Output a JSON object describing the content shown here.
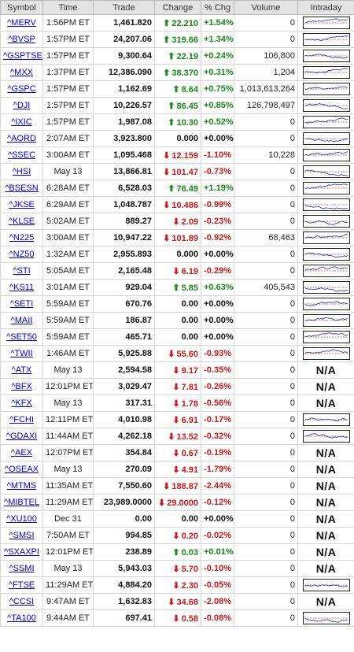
{
  "headers": {
    "symbol": "Symbol",
    "time": "Time",
    "trade": "Trade",
    "change": "Change",
    "pct": "% Chg",
    "volume": "Volume",
    "intraday": "Intraday"
  },
  "colors": {
    "up": "#1a8a1a",
    "down": "#c81a1a",
    "spark_line": "#3344bb",
    "spark_ref": "#d04040"
  },
  "rows": [
    {
      "symbol": "^MERV",
      "time": "1:56PM ET",
      "trade": "1,461.820",
      "change": "22.210",
      "pct": "+1.54%",
      "volume": "0",
      "dir": "up",
      "chart": true
    },
    {
      "symbol": "^BVSP",
      "time": "1:57PM ET",
      "trade": "24,207.06",
      "change": "319.66",
      "pct": "+1.34%",
      "volume": "0",
      "dir": "up",
      "chart": true
    },
    {
      "symbol": "^GSPTSE",
      "time": "1:57PM ET",
      "trade": "9,300.64",
      "change": "22.19",
      "pct": "+0.24%",
      "volume": "106,800",
      "dir": "up",
      "chart": true
    },
    {
      "symbol": "^MXX",
      "time": "1:37PM ET",
      "trade": "12,386.090",
      "change": "38.370",
      "pct": "+0.31%",
      "volume": "1,204",
      "dir": "up",
      "chart": true
    },
    {
      "symbol": "^GSPC",
      "time": "1:57PM ET",
      "trade": "1,162.69",
      "change": "8.64",
      "pct": "+0.75%",
      "volume": "1,013,613,264",
      "dir": "up",
      "chart": true
    },
    {
      "symbol": "^DJI",
      "time": "1:57PM ET",
      "trade": "10,226.57",
      "change": "86.45",
      "pct": "+0.85%",
      "volume": "126,798,497",
      "dir": "up",
      "chart": true
    },
    {
      "symbol": "^IXIC",
      "time": "1:57PM ET",
      "trade": "1,987.08",
      "change": "10.30",
      "pct": "+0.52%",
      "volume": "0",
      "dir": "up",
      "chart": true
    },
    {
      "symbol": "^AORD",
      "time": "2:07AM ET",
      "trade": "3,923.800",
      "change": "0.000",
      "pct": "+0.00%",
      "volume": "0",
      "dir": "flat",
      "chart": true
    },
    {
      "symbol": "^SSEC",
      "time": "3:00AM ET",
      "trade": "1,095.468",
      "change": "12.159",
      "pct": "-1.10%",
      "volume": "10,228",
      "dir": "down",
      "chart": true
    },
    {
      "symbol": "^HSI",
      "time": "May 13",
      "trade": "13,866.81",
      "change": "101.47",
      "pct": "-0.73%",
      "volume": "0",
      "dir": "down",
      "chart": true
    },
    {
      "symbol": "^BSESN",
      "time": "6:28AM ET",
      "trade": "6,528.03",
      "change": "76.49",
      "pct": "+1.19%",
      "volume": "0",
      "dir": "up",
      "chart": true
    },
    {
      "symbol": "^JKSE",
      "time": "6:29AM ET",
      "trade": "1,048.787",
      "change": "10.486",
      "pct": "-0.99%",
      "volume": "0",
      "dir": "down",
      "chart": true
    },
    {
      "symbol": "^KLSE",
      "time": "5:02AM ET",
      "trade": "889.27",
      "change": "2.09",
      "pct": "-0.23%",
      "volume": "0",
      "dir": "down",
      "chart": true
    },
    {
      "symbol": "^N225",
      "time": "3:00AM ET",
      "trade": "10,947.22",
      "change": "101.89",
      "pct": "-0.92%",
      "volume": "68,463",
      "dir": "down",
      "chart": true
    },
    {
      "symbol": "^NZ50",
      "time": "1:32AM ET",
      "trade": "2,955.893",
      "change": "0.000",
      "pct": "+0.00%",
      "volume": "0",
      "dir": "flat",
      "chart": true
    },
    {
      "symbol": "^STI",
      "time": "5:05AM ET",
      "trade": "2,165.48",
      "change": "6.19",
      "pct": "-0.29%",
      "volume": "0",
      "dir": "down",
      "chart": true
    },
    {
      "symbol": "^KS11",
      "time": "3:01AM ET",
      "trade": "929.04",
      "change": "5.85",
      "pct": "+0.63%",
      "volume": "405,543",
      "dir": "up",
      "chart": true
    },
    {
      "symbol": "^SETI",
      "time": "5:59AM ET",
      "trade": "670.76",
      "change": "0.00",
      "pct": "+0.00%",
      "volume": "0",
      "dir": "flat",
      "chart": true
    },
    {
      "symbol": "^MAII",
      "time": "5:59AM ET",
      "trade": "186.87",
      "change": "0.00",
      "pct": "+0.00%",
      "volume": "0",
      "dir": "flat",
      "chart": true
    },
    {
      "symbol": "^SET50",
      "time": "5:59AM ET",
      "trade": "465.71",
      "change": "0.00",
      "pct": "+0.00%",
      "volume": "0",
      "dir": "flat",
      "chart": true
    },
    {
      "symbol": "^TWII",
      "time": "1:46AM ET",
      "trade": "5,925.88",
      "change": "55.60",
      "pct": "-0.93%",
      "volume": "0",
      "dir": "down",
      "chart": true
    },
    {
      "symbol": "^ATX",
      "time": "May 13",
      "trade": "2,594.58",
      "change": "9.17",
      "pct": "-0.35%",
      "volume": "0",
      "dir": "down",
      "chart": false
    },
    {
      "symbol": "^BFX",
      "time": "12:01PM ET",
      "trade": "3,029.47",
      "change": "7.81",
      "pct": "-0.26%",
      "volume": "0",
      "dir": "down",
      "chart": false
    },
    {
      "symbol": "^KFX",
      "time": "May 13",
      "trade": "317.31",
      "change": "1.78",
      "pct": "-0.56%",
      "volume": "0",
      "dir": "down",
      "chart": false
    },
    {
      "symbol": "^FCHI",
      "time": "12:11PM ET",
      "trade": "4,010.98",
      "change": "6.91",
      "pct": "-0.17%",
      "volume": "0",
      "dir": "down",
      "chart": true
    },
    {
      "symbol": "^GDAXI",
      "time": "11:44AM ET",
      "trade": "4,262.18",
      "change": "13.52",
      "pct": "-0.32%",
      "volume": "0",
      "dir": "down",
      "chart": true
    },
    {
      "symbol": "^AEX",
      "time": "12:07PM ET",
      "trade": "354.84",
      "change": "0.67",
      "pct": "-0.19%",
      "volume": "0",
      "dir": "down",
      "chart": false
    },
    {
      "symbol": "^OSEAX",
      "time": "May 13",
      "trade": "270.09",
      "change": "4.91",
      "pct": "-1.79%",
      "volume": "0",
      "dir": "down",
      "chart": false
    },
    {
      "symbol": "^MTMS",
      "time": "11:35AM ET",
      "trade": "7,550.60",
      "change": "188.87",
      "pct": "-2.44%",
      "volume": "0",
      "dir": "down",
      "chart": false
    },
    {
      "symbol": "^MIBTEL",
      "time": "11:29AM ET",
      "trade": "23,989.0000",
      "change": "29.0000",
      "pct": "-0.12%",
      "volume": "0",
      "dir": "down",
      "chart": false
    },
    {
      "symbol": "^XU100",
      "time": "Dec 31",
      "trade": "0.00",
      "change": "0.00",
      "pct": "+0.00%",
      "volume": "0",
      "dir": "flat",
      "chart": false
    },
    {
      "symbol": "^SMSI",
      "time": "7:50AM ET",
      "trade": "994.85",
      "change": "0.20",
      "pct": "-0.02%",
      "volume": "0",
      "dir": "down",
      "chart": false
    },
    {
      "symbol": "^SXAXPI",
      "time": "12:01PM ET",
      "trade": "238.89",
      "change": "0.03",
      "pct": "+0.01%",
      "volume": "0",
      "dir": "up",
      "chart": false
    },
    {
      "symbol": "^SSMI",
      "time": "May 13",
      "trade": "5,943.03",
      "change": "5.70",
      "pct": "-0.10%",
      "volume": "0",
      "dir": "down",
      "chart": false
    },
    {
      "symbol": "^FTSE",
      "time": "11:29AM ET",
      "trade": "4,884.20",
      "change": "2.30",
      "pct": "-0.05%",
      "volume": "0",
      "dir": "down",
      "chart": true
    },
    {
      "symbol": "^CCSI",
      "time": "9:47AM ET",
      "trade": "1,632.83",
      "change": "34.68",
      "pct": "-2.08%",
      "volume": "0",
      "dir": "down",
      "chart": false
    },
    {
      "symbol": "^TA100",
      "time": "9:44AM ET",
      "trade": "697.41",
      "change": "0.58",
      "pct": "-0.08%",
      "volume": "0",
      "dir": "down",
      "chart": true
    }
  ],
  "na_label": "N/A"
}
